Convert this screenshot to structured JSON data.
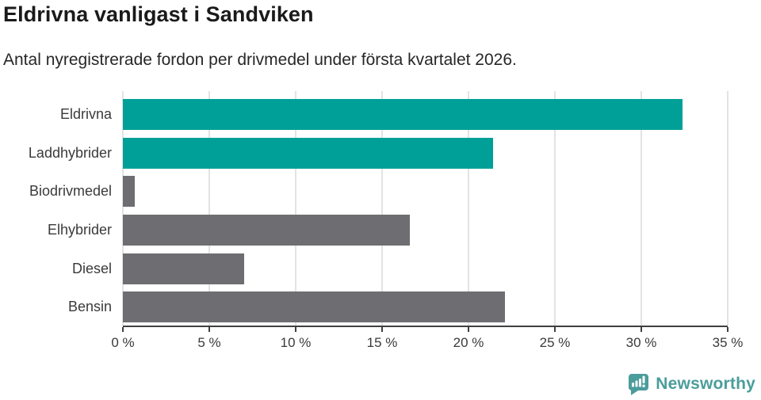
{
  "header": {
    "title": "Eldrivna vanligast i Sandviken",
    "subtitle": "Antal nyregistrerade fordon per drivmedel under första kvartalet 2026."
  },
  "chart_data": {
    "type": "bar",
    "orientation": "horizontal",
    "title": "Eldrivna vanligast i Sandviken",
    "subtitle": "Antal nyregistrerade fordon per drivmedel under första kvartalet 2026.",
    "categories": [
      "Eldrivna",
      "Laddhybrider",
      "Biodrivmedel",
      "Elhybrider",
      "Diesel",
      "Bensin"
    ],
    "values": [
      32.4,
      21.4,
      0.7,
      16.6,
      7.0,
      22.1
    ],
    "unit": "%",
    "bar_colors": [
      "#00a099",
      "#00a099",
      "#6e6d72",
      "#6e6d72",
      "#6e6d72",
      "#6e6d72"
    ],
    "x_ticks": [
      "0 %",
      "5 %",
      "10 %",
      "15 %",
      "20 %",
      "25 %",
      "30 %",
      "35 %"
    ],
    "xlim": [
      0,
      35
    ],
    "grid": true,
    "legend": "none",
    "gridline_color": "#e3e3e3",
    "axis_color": "#3f3f3f"
  },
  "footer": {
    "brand": "Newsworthy",
    "brand_color": "#4a9d9b",
    "logo_icon": "newsworthy-chart-bubble-icon"
  }
}
